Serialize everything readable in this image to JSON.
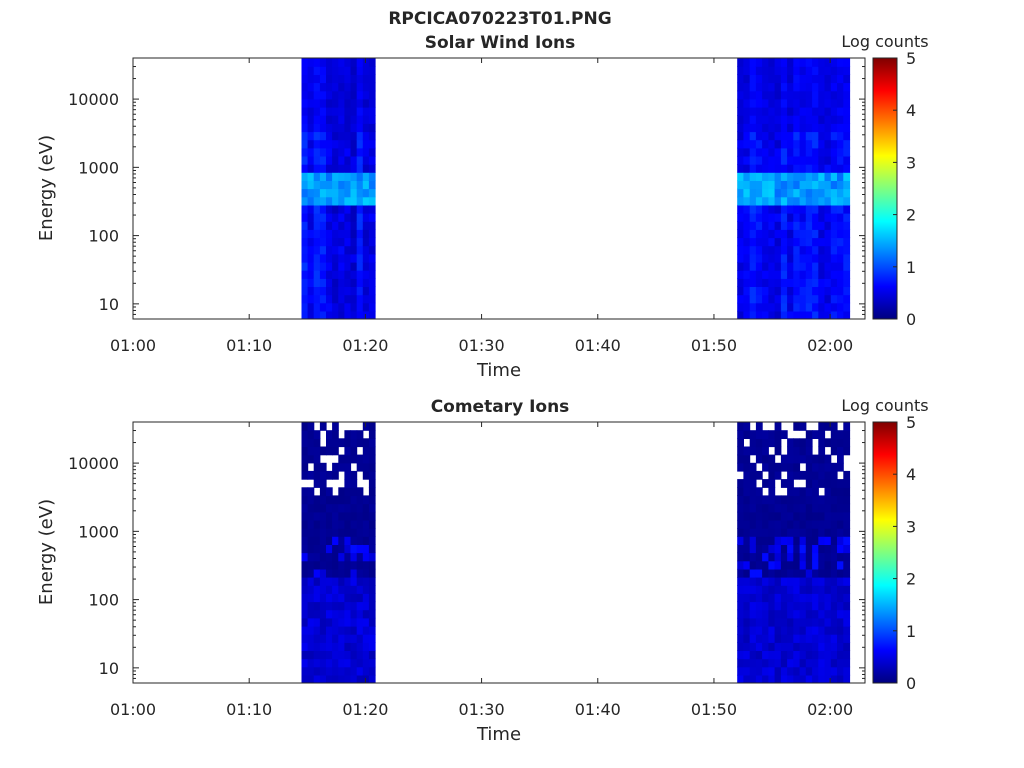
{
  "figure_title": "RPCICA070223T01.PNG",
  "chart_data": [
    {
      "type": "heatmap",
      "title": "Solar Wind Ions",
      "xlabel": "Time",
      "ylabel": "Energy (eV)",
      "x_ticks": [
        "01:00",
        "01:10",
        "01:20",
        "01:30",
        "01:40",
        "01:50",
        "02:00"
      ],
      "xlim": [
        "01:00",
        "02:03"
      ],
      "y_scale": "log",
      "y_ticks": [
        10,
        100,
        1000,
        10000
      ],
      "ylim": [
        6,
        40000
      ],
      "colorbar": {
        "label": "Log counts",
        "ticks": [
          0,
          1,
          2,
          3,
          4,
          5
        ],
        "range": [
          0,
          5
        ],
        "colormap": "jet"
      },
      "data_intervals": [
        {
          "start": "01:14:30",
          "end": "01:20:50"
        },
        {
          "start": "01:52:00",
          "end": "02:01:40"
        }
      ],
      "log_counts_summary": {
        "background": 0.6,
        "high_energy_above_3000eV": 0.5,
        "peak_band_eV": [
          300,
          900
        ],
        "peak_band_value": 1.4
      }
    },
    {
      "type": "heatmap",
      "title": "Cometary Ions",
      "xlabel": "Time",
      "ylabel": "Energy (eV)",
      "x_ticks": [
        "01:00",
        "01:10",
        "01:20",
        "01:30",
        "01:40",
        "01:50",
        "02:00"
      ],
      "xlim": [
        "01:00",
        "02:03"
      ],
      "y_scale": "log",
      "y_ticks": [
        10,
        100,
        1000,
        10000
      ],
      "ylim": [
        6,
        40000
      ],
      "colorbar": {
        "label": "Log counts",
        "ticks": [
          0,
          1,
          2,
          3,
          4,
          5
        ],
        "range": [
          0,
          5
        ],
        "colormap": "jet"
      },
      "data_intervals": [
        {
          "start": "01:14:30",
          "end": "01:20:50"
        },
        {
          "start": "01:52:00",
          "end": "02:01:40"
        }
      ],
      "log_counts_summary": {
        "background": 0.05,
        "low_energy_below_200eV": 0.35,
        "peak_value": 0.7,
        "missing_bins_common_above_eV": 3000
      }
    }
  ],
  "colors": {
    "axis": "#262626",
    "jet_stops": [
      "#00007f",
      "#0000ff",
      "#007fff",
      "#00ffff",
      "#7fff7f",
      "#ffff00",
      "#ff7f00",
      "#ff0000",
      "#7f0000"
    ]
  }
}
